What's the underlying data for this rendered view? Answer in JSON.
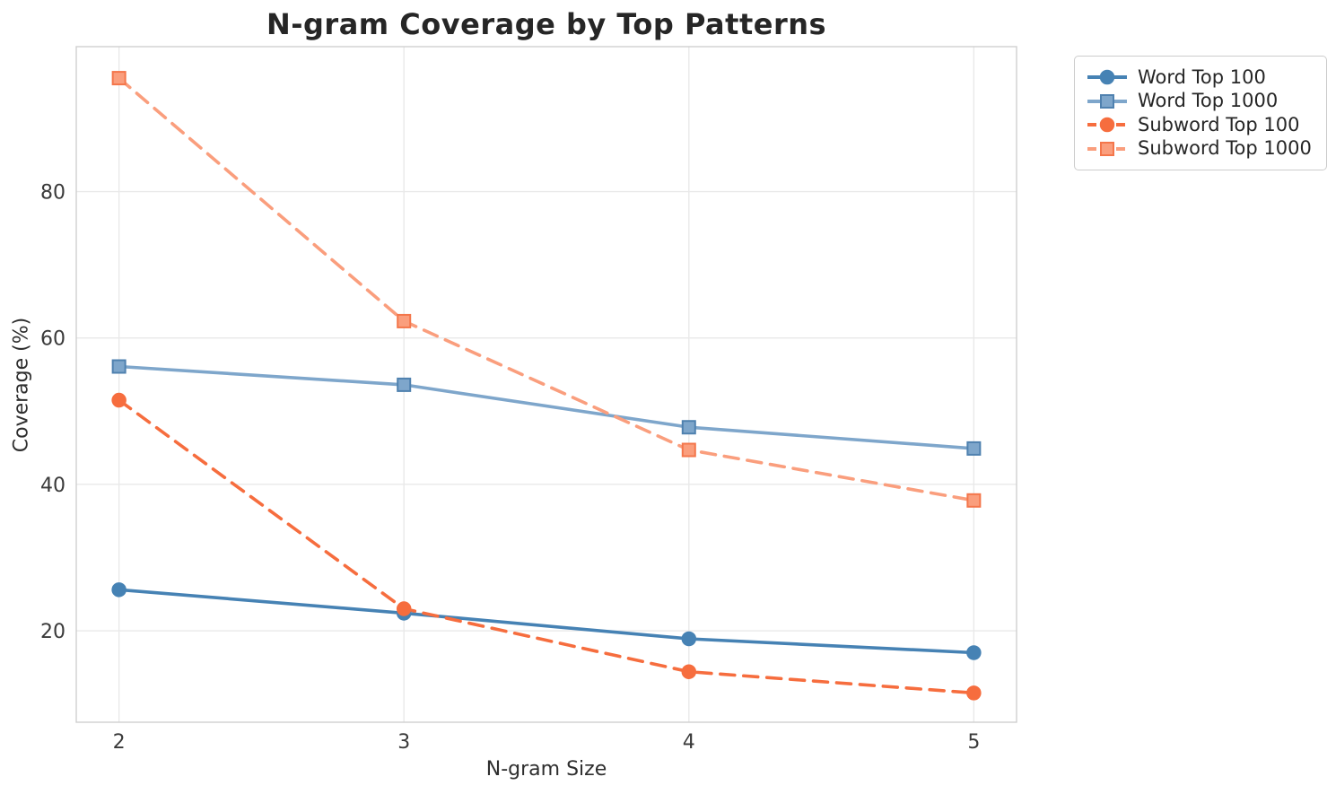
{
  "chart_data": {
    "type": "line",
    "title": "N-gram Coverage by Top Patterns",
    "xlabel": "N-gram Size",
    "ylabel": "Coverage (%)",
    "x": [
      2,
      3,
      4,
      5
    ],
    "xticks": [
      2,
      3,
      4,
      5
    ],
    "yticks": [
      20,
      40,
      60,
      80
    ],
    "xlim": [
      1.85,
      5.15
    ],
    "ylim": [
      7.5,
      99.8
    ],
    "grid": true,
    "legend_position": "outside-top-right",
    "colors": {
      "grid": "#e9e9e9",
      "spine": "#cfcfcf",
      "word_top_100": "#4682b4",
      "word_top_1000": "#7ea6cb",
      "subword_top_100": "#f66d3e",
      "subword_top_1000": "#fa9e7d"
    },
    "series": [
      {
        "name": "Word Top 100",
        "color": "#4682b4",
        "edge": "#4682b4",
        "marker": "circle",
        "dash": "solid",
        "values": [
          25.6,
          22.4,
          18.9,
          17.0
        ]
      },
      {
        "name": "Word Top 1000",
        "color": "#7ea6cb",
        "edge": "#4f81af",
        "marker": "square",
        "dash": "solid",
        "values": [
          56.1,
          53.6,
          47.8,
          44.9
        ]
      },
      {
        "name": "Subword Top 100",
        "color": "#f66d3e",
        "edge": "#f66d3e",
        "marker": "circle",
        "dash": "dashed",
        "values": [
          51.5,
          23.0,
          14.4,
          11.5
        ]
      },
      {
        "name": "Subword Top 1000",
        "color": "#fa9e7d",
        "edge": "#f4764b",
        "marker": "square",
        "dash": "dashed",
        "values": [
          95.5,
          62.3,
          44.7,
          37.8
        ]
      }
    ]
  }
}
